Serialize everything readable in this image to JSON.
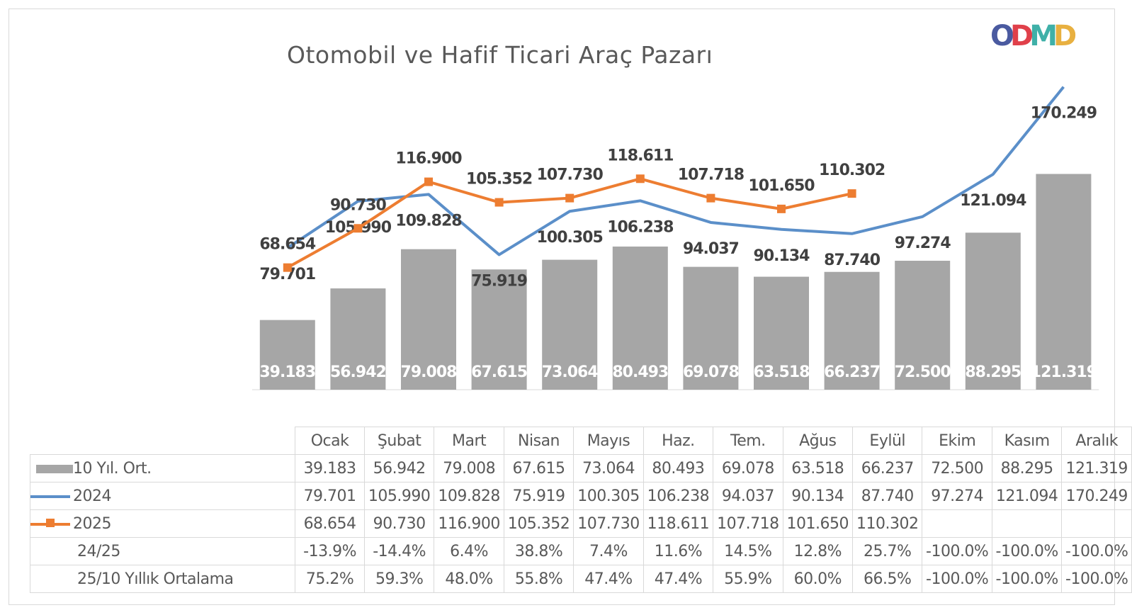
{
  "chart_data": {
    "type": "bar+line",
    "title": "Otomobil ve Hafif Ticari Araç Pazarı",
    "logo_text": "ODMD",
    "categories": [
      "Ocak",
      "Şubat",
      "Mart",
      "Nisan",
      "Mayıs",
      "Haz.",
      "Tem.",
      "Ağus",
      "Eylül",
      "Ekim",
      "Kasım",
      "Aralık"
    ],
    "ylim": [
      0,
      175
    ],
    "grid": false,
    "legend": "table-bottom-left",
    "series": [
      {
        "name": "10 Yıl. Ort.",
        "type": "bar",
        "color": "#a6a6a6",
        "values": [
          39.183,
          56.942,
          79.008,
          67.615,
          73.064,
          80.493,
          69.078,
          63.518,
          66.237,
          72.5,
          88.295,
          121.319
        ],
        "labels": [
          "39.183",
          "56.942",
          "79.008",
          "67.615",
          "73.064",
          "80.493",
          "69.078",
          "63.518",
          "66.237",
          "72.500",
          "88.295",
          "121.319"
        ]
      },
      {
        "name": "2024",
        "type": "line",
        "color": "#5b8fc9",
        "values": [
          79.701,
          105.99,
          109.828,
          75.919,
          100.305,
          106.238,
          94.037,
          90.134,
          87.74,
          97.274,
          121.094,
          170.249
        ],
        "labels": [
          "79.701",
          "105.990",
          "109.828",
          "75.919",
          "100.305",
          "106.238",
          "94.037",
          "90.134",
          "87.740",
          "97.274",
          "121.094",
          "170.249"
        ]
      },
      {
        "name": "2025",
        "type": "line",
        "color": "#ed7d31",
        "values": [
          68.654,
          90.73,
          116.9,
          105.352,
          107.73,
          118.611,
          107.718,
          101.65,
          110.302,
          null,
          null,
          null
        ],
        "labels": [
          "68.654",
          "90.730",
          "116.900",
          "105.352",
          "107.730",
          "118.611",
          "107.718",
          "101.650",
          "110.302",
          "",
          "",
          ""
        ]
      }
    ],
    "table_rows": [
      {
        "label": "24/25",
        "values": [
          "-13.9%",
          "-14.4%",
          "6.4%",
          "38.8%",
          "7.4%",
          "11.6%",
          "14.5%",
          "12.8%",
          "25.7%",
          "-100.0%",
          "-100.0%",
          "-100.0%"
        ]
      },
      {
        "label": "25/10 Yıllık Ortalama",
        "values": [
          "75.2%",
          "59.3%",
          "48.0%",
          "55.8%",
          "47.4%",
          "47.4%",
          "55.9%",
          "60.0%",
          "66.5%",
          "-100.0%",
          "-100.0%",
          "-100.0%"
        ]
      }
    ]
  }
}
